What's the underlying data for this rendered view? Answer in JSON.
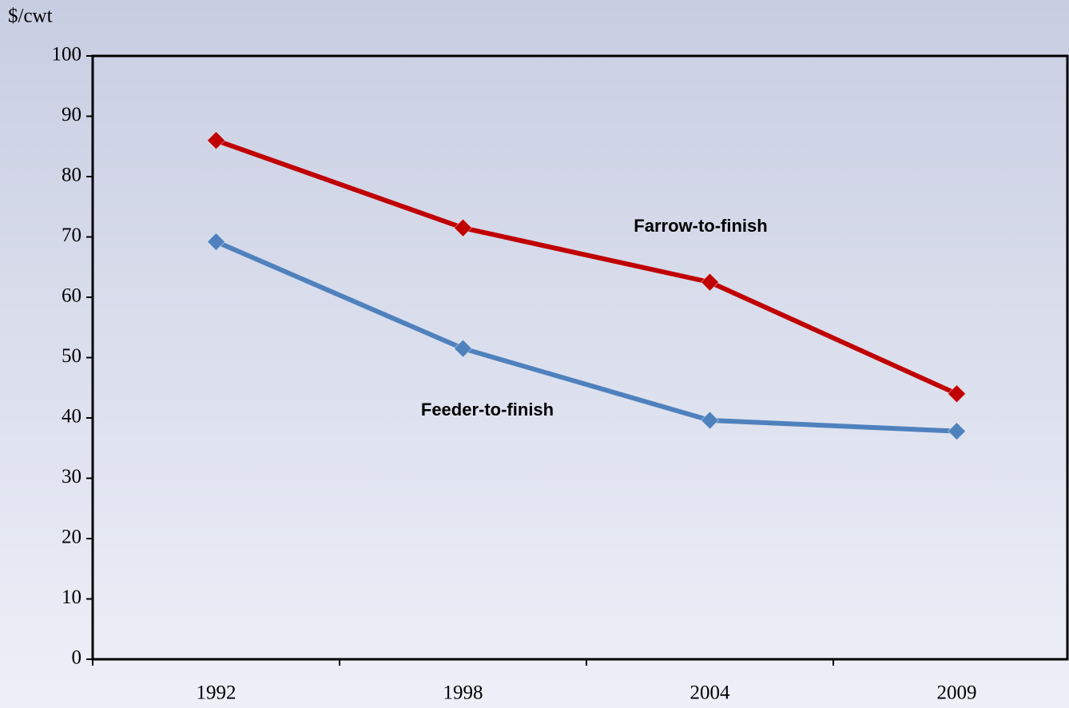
{
  "chart_data": {
    "type": "line",
    "y_label": "$/cwt",
    "categories": [
      "1992",
      "1998",
      "2004",
      "2009"
    ],
    "series": [
      {
        "name": "Farrow-to-finish",
        "color": "#c00000",
        "values": [
          86,
          71.5,
          62.5,
          44
        ]
      },
      {
        "name": "Feeder-to-finish",
        "color": "#4f81bd",
        "values": [
          69.2,
          51.5,
          39.6,
          37.8
        ]
      }
    ],
    "ylim": [
      0,
      100
    ],
    "yticks": [
      0,
      10,
      20,
      30,
      40,
      50,
      60,
      70,
      80,
      90,
      100
    ],
    "grid": false
  }
}
